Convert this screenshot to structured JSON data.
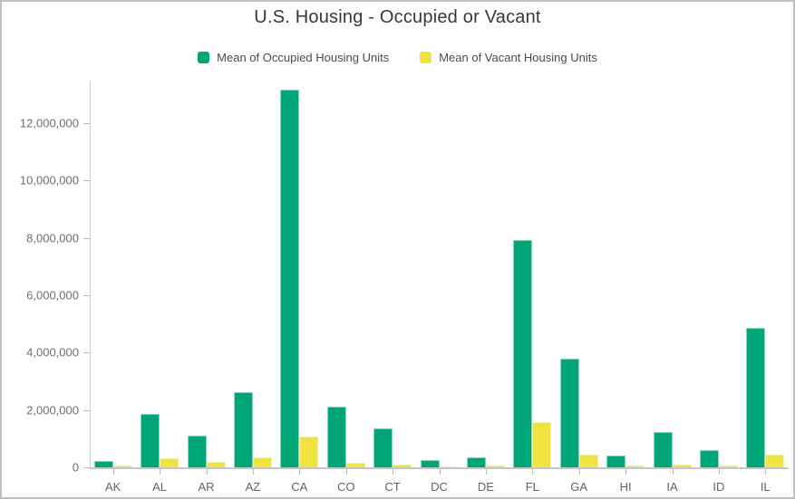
{
  "window": {
    "background": "#ffffff",
    "border_color": "#c0c0c0"
  },
  "chart_data": {
    "type": "bar",
    "title": "U.S. Housing - Occupied or Vacant",
    "xlabel": "",
    "ylabel": "",
    "categories": [
      "AK",
      "AL",
      "AR",
      "AZ",
      "CA",
      "CO",
      "CT",
      "DC",
      "DE",
      "FL",
      "GA",
      "HI",
      "IA",
      "ID",
      "IL"
    ],
    "series": [
      {
        "name": "Mean of Occupied Housing Units",
        "color": "#00a578",
        "values": [
          220000,
          1850000,
          1120000,
          2610000,
          13160000,
          2110000,
          1345000,
          245000,
          340000,
          7930000,
          3800000,
          425000,
          1220000,
          585000,
          4850000
        ]
      },
      {
        "name": "Mean of Vacant Housing Units",
        "color": "#f0e33f",
        "values": [
          50000,
          320000,
          185000,
          345000,
          1060000,
          165000,
          110000,
          30000,
          57000,
          1590000,
          450000,
          63000,
          95000,
          57000,
          430000
        ]
      }
    ],
    "y_ticks": [
      0,
      2000000,
      4000000,
      6000000,
      8000000,
      10000000,
      12000000
    ],
    "ylim": [
      0,
      13400000
    ],
    "grid": false,
    "legend_position": "top",
    "axis_color": "#cccccc",
    "tick_color": "#b9bcbe",
    "y_label_color": "#6e6e6e",
    "x_label_color": "#5c666d"
  }
}
